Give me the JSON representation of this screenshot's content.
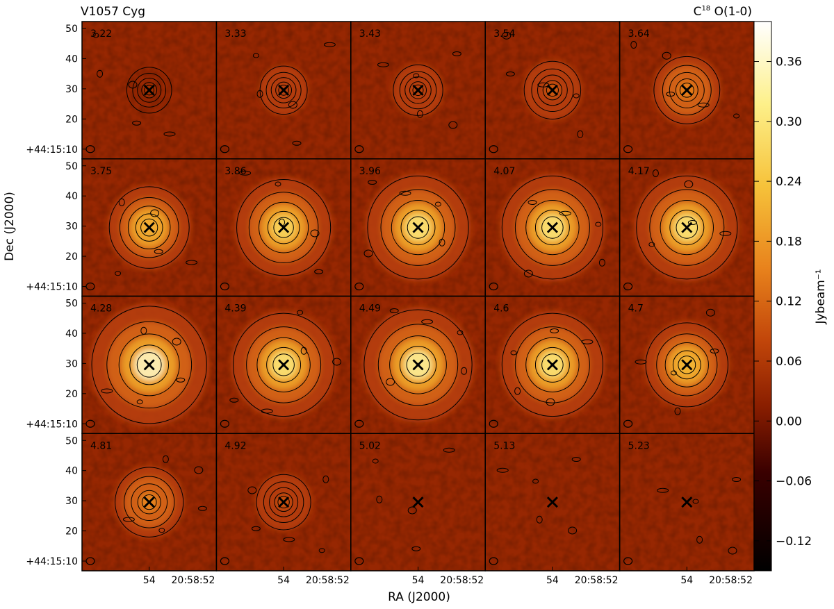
{
  "chart_data": {
    "type": "heatmap",
    "title_left": "V1057 Cyg",
    "title_right": "C18O(1-0)",
    "xlabel": "RA (J2000)",
    "ylabel": "Dec (J2000)",
    "colorbar_label": "Jybeam⁻¹",
    "colorbar_ticks": [
      "0.36",
      "0.30",
      "0.24",
      "0.18",
      "0.12",
      "0.06",
      "0.00",
      "−0.06",
      "−0.12"
    ],
    "colorbar_range": [
      -0.15,
      0.4
    ],
    "yticks": [
      "50",
      "40",
      "30",
      "20",
      "+44:15:10"
    ],
    "xticks": [
      "54",
      "20:58:52"
    ],
    "grid_rows": 4,
    "grid_cols": 5,
    "marker": "x",
    "panels": [
      {
        "label": "3.22",
        "peak": 0.06
      },
      {
        "label": "3.33",
        "peak": 0.07
      },
      {
        "label": "3.43",
        "peak": 0.08
      },
      {
        "label": "3.54",
        "peak": 0.11
      },
      {
        "label": "3.64",
        "peak": 0.15
      },
      {
        "label": "3.75",
        "peak": 0.21
      },
      {
        "label": "3.86",
        "peak": 0.27
      },
      {
        "label": "3.96",
        "peak": 0.3
      },
      {
        "label": "4.07",
        "peak": 0.3
      },
      {
        "label": "4.17",
        "peak": 0.3
      },
      {
        "label": "4.28",
        "peak": 0.36
      },
      {
        "label": "4.39",
        "peak": 0.3
      },
      {
        "label": "4.49",
        "peak": 0.33
      },
      {
        "label": "4.6",
        "peak": 0.3
      },
      {
        "label": "4.7",
        "peak": 0.22
      },
      {
        "label": "4.81",
        "peak": 0.16
      },
      {
        "label": "4.92",
        "peak": 0.1
      },
      {
        "label": "5.02",
        "peak": 0.04
      },
      {
        "label": "5.13",
        "peak": 0.04
      },
      {
        "label": "5.23",
        "peak": 0.04
      }
    ]
  }
}
